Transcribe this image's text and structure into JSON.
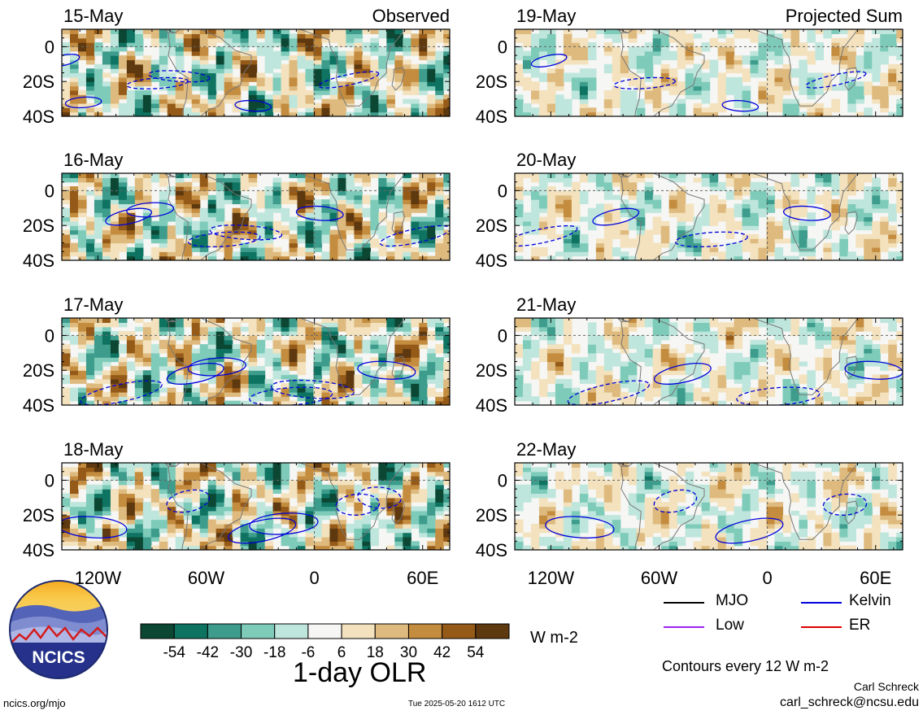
{
  "headers": {
    "observed": "Observed",
    "projected": "Projected Sum"
  },
  "chart_data": {
    "type": "heatmap",
    "variable": "1-day OLR",
    "units": "W m-2",
    "columns": [
      {
        "label": "Observed",
        "panels": [
          "15-May",
          "16-May",
          "17-May",
          "18-May"
        ]
      },
      {
        "label": "Projected Sum",
        "panels": [
          "19-May",
          "20-May",
          "21-May",
          "22-May"
        ]
      }
    ],
    "x_axis": {
      "ticks": [
        "120W",
        "60W",
        "0",
        "60E"
      ],
      "tick_values": [
        -120,
        -60,
        0,
        60
      ],
      "range": [
        -140,
        75
      ]
    },
    "y_axis": {
      "ticks": [
        "0",
        "20S",
        "40S"
      ],
      "tick_values": [
        0,
        -20,
        -40
      ],
      "range": [
        -40,
        10
      ]
    },
    "colorbar": {
      "ticks": [
        "-54",
        "-42",
        "-30",
        "-18",
        "-6",
        "6",
        "18",
        "30",
        "42",
        "54"
      ],
      "tick_values": [
        -54,
        -42,
        -30,
        -18,
        -6,
        6,
        18,
        30,
        42,
        54
      ],
      "colors": [
        "#0c4733",
        "#0f7362",
        "#3d9c8c",
        "#7ecbba",
        "#bfe6dc",
        "#f6f6f4",
        "#f3e2bd",
        "#deba7e",
        "#c48c3f",
        "#955a18",
        "#5e380e"
      ]
    },
    "contour_interval": "Contours every 12 W m-2",
    "contour_legend": [
      {
        "name": "MJO",
        "color": "#000000"
      },
      {
        "name": "Kelvin",
        "color": "#0000dd"
      },
      {
        "name": "Low",
        "color": "#a020f0"
      },
      {
        "name": "ER",
        "color": "#dd0000"
      }
    ]
  },
  "footer": {
    "title": "1-day OLR",
    "units": "W m-2",
    "contour_note": "Contours every 12 W m-2",
    "author": "Carl Schreck",
    "email": "carl_schreck@ncsu.edu",
    "website": "ncics.org/mjo",
    "timestamp": "Tue 2025-05-20 1612 UTC",
    "logo_text": "NCICS"
  }
}
